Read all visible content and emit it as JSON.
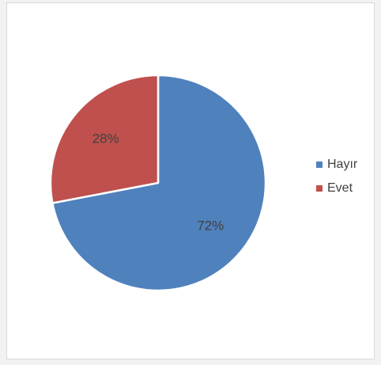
{
  "chart_data": {
    "type": "pie",
    "categories": [
      "Hayır",
      "Evet"
    ],
    "values": [
      72,
      28
    ],
    "value_labels": [
      "72%",
      "28%"
    ],
    "colors": [
      "#4f81bd",
      "#c0504d"
    ],
    "start_angle_deg": 0,
    "direction": "clockwise",
    "legend": "right",
    "title": ""
  },
  "legend": {
    "items": [
      {
        "label": "Hayır",
        "color": "#4f81bd"
      },
      {
        "label": "Evet",
        "color": "#c0504d"
      }
    ]
  }
}
